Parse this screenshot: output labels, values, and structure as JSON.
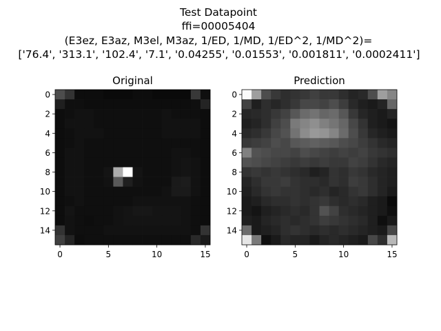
{
  "figure": {
    "title_lines": [
      "Test Datapoint",
      "ffi=00005404",
      "(E3ez, E3az, M3el, M3az, 1/ED, 1/MD, 1/ED^2, 1/MD^2)=",
      "['76.4', '313.1', '102.4', '7.1', '0.04255', '0.01553', '0.001811', '0.0002411']"
    ]
  },
  "chart_data": [
    {
      "type": "heatmap",
      "title": "Original",
      "colormap": "gray",
      "xlim": [
        0,
        15
      ],
      "ylim": [
        0,
        15
      ],
      "y_inverted": true,
      "xticks": [
        0,
        5,
        10,
        15
      ],
      "yticks": [
        0,
        2,
        4,
        6,
        8,
        10,
        12,
        14
      ],
      "values": [
        [
          0.3,
          0.2,
          0.05,
          0.05,
          0.05,
          0.04,
          0.04,
          0.04,
          0.05,
          0.05,
          0.04,
          0.04,
          0.04,
          0.04,
          0.22,
          0.06
        ],
        [
          0.12,
          0.06,
          0.06,
          0.05,
          0.05,
          0.05,
          0.05,
          0.05,
          0.05,
          0.05,
          0.05,
          0.05,
          0.05,
          0.05,
          0.06,
          0.14
        ],
        [
          0.05,
          0.06,
          0.07,
          0.07,
          0.06,
          0.06,
          0.06,
          0.06,
          0.06,
          0.06,
          0.06,
          0.07,
          0.06,
          0.06,
          0.06,
          0.05
        ],
        [
          0.05,
          0.07,
          0.07,
          0.07,
          0.06,
          0.06,
          0.06,
          0.06,
          0.06,
          0.06,
          0.06,
          0.07,
          0.07,
          0.07,
          0.07,
          0.05
        ],
        [
          0.05,
          0.06,
          0.07,
          0.07,
          0.07,
          0.06,
          0.06,
          0.06,
          0.06,
          0.06,
          0.06,
          0.07,
          0.07,
          0.07,
          0.07,
          0.05
        ],
        [
          0.05,
          0.06,
          0.07,
          0.06,
          0.06,
          0.06,
          0.06,
          0.06,
          0.06,
          0.06,
          0.06,
          0.06,
          0.06,
          0.06,
          0.06,
          0.05
        ],
        [
          0.05,
          0.07,
          0.07,
          0.06,
          0.06,
          0.06,
          0.06,
          0.06,
          0.06,
          0.06,
          0.06,
          0.06,
          0.07,
          0.07,
          0.06,
          0.05
        ],
        [
          0.05,
          0.07,
          0.07,
          0.06,
          0.06,
          0.06,
          0.06,
          0.06,
          0.06,
          0.06,
          0.06,
          0.06,
          0.07,
          0.08,
          0.07,
          0.05
        ],
        [
          0.05,
          0.07,
          0.07,
          0.06,
          0.06,
          0.08,
          0.68,
          1.0,
          0.08,
          0.06,
          0.06,
          0.06,
          0.07,
          0.08,
          0.07,
          0.05
        ],
        [
          0.05,
          0.07,
          0.07,
          0.06,
          0.06,
          0.07,
          0.35,
          0.12,
          0.07,
          0.06,
          0.06,
          0.06,
          0.1,
          0.11,
          0.07,
          0.05
        ],
        [
          0.05,
          0.07,
          0.07,
          0.06,
          0.06,
          0.06,
          0.06,
          0.06,
          0.06,
          0.06,
          0.06,
          0.07,
          0.1,
          0.1,
          0.07,
          0.05
        ],
        [
          0.05,
          0.06,
          0.07,
          0.06,
          0.06,
          0.06,
          0.06,
          0.06,
          0.07,
          0.07,
          0.07,
          0.07,
          0.07,
          0.07,
          0.06,
          0.05
        ],
        [
          0.05,
          0.08,
          0.06,
          0.06,
          0.06,
          0.06,
          0.07,
          0.08,
          0.09,
          0.09,
          0.08,
          0.08,
          0.08,
          0.07,
          0.06,
          0.05
        ],
        [
          0.05,
          0.07,
          0.06,
          0.05,
          0.06,
          0.06,
          0.07,
          0.08,
          0.08,
          0.08,
          0.08,
          0.08,
          0.08,
          0.07,
          0.06,
          0.05
        ],
        [
          0.2,
          0.07,
          0.06,
          0.06,
          0.06,
          0.07,
          0.07,
          0.07,
          0.07,
          0.07,
          0.07,
          0.07,
          0.07,
          0.07,
          0.06,
          0.2
        ],
        [
          0.25,
          0.14,
          0.05,
          0.06,
          0.06,
          0.06,
          0.06,
          0.06,
          0.06,
          0.06,
          0.06,
          0.06,
          0.06,
          0.06,
          0.16,
          0.1
        ]
      ]
    },
    {
      "type": "heatmap",
      "title": "Prediction",
      "colormap": "gray",
      "xlim": [
        0,
        15
      ],
      "ylim": [
        0,
        15
      ],
      "y_inverted": true,
      "xticks": [
        0,
        5,
        10,
        15
      ],
      "yticks": [
        0,
        2,
        4,
        6,
        8,
        10,
        12,
        14
      ],
      "values": [
        [
          0.98,
          0.62,
          0.3,
          0.22,
          0.18,
          0.2,
          0.22,
          0.25,
          0.22,
          0.22,
          0.18,
          0.14,
          0.16,
          0.3,
          0.62,
          0.52
        ],
        [
          0.26,
          0.12,
          0.18,
          0.15,
          0.18,
          0.22,
          0.28,
          0.28,
          0.26,
          0.3,
          0.24,
          0.16,
          0.12,
          0.1,
          0.14,
          0.4
        ],
        [
          0.15,
          0.16,
          0.18,
          0.22,
          0.26,
          0.34,
          0.42,
          0.45,
          0.4,
          0.42,
          0.34,
          0.22,
          0.15,
          0.12,
          0.1,
          0.14
        ],
        [
          0.12,
          0.14,
          0.18,
          0.25,
          0.3,
          0.48,
          0.52,
          0.56,
          0.5,
          0.46,
          0.4,
          0.28,
          0.2,
          0.12,
          0.1,
          0.08
        ],
        [
          0.16,
          0.18,
          0.22,
          0.28,
          0.32,
          0.45,
          0.55,
          0.6,
          0.58,
          0.52,
          0.42,
          0.3,
          0.22,
          0.15,
          0.12,
          0.1
        ],
        [
          0.22,
          0.24,
          0.26,
          0.3,
          0.28,
          0.34,
          0.36,
          0.38,
          0.36,
          0.34,
          0.3,
          0.28,
          0.24,
          0.2,
          0.16,
          0.14
        ],
        [
          0.5,
          0.32,
          0.3,
          0.28,
          0.28,
          0.26,
          0.3,
          0.28,
          0.26,
          0.24,
          0.26,
          0.24,
          0.26,
          0.22,
          0.2,
          0.18
        ],
        [
          0.32,
          0.3,
          0.28,
          0.26,
          0.24,
          0.22,
          0.24,
          0.22,
          0.24,
          0.22,
          0.22,
          0.26,
          0.24,
          0.2,
          0.16,
          0.14
        ],
        [
          0.2,
          0.22,
          0.2,
          0.22,
          0.2,
          0.18,
          0.16,
          0.12,
          0.14,
          0.2,
          0.18,
          0.22,
          0.2,
          0.16,
          0.14,
          0.12
        ],
        [
          0.14,
          0.18,
          0.22,
          0.22,
          0.24,
          0.2,
          0.18,
          0.18,
          0.16,
          0.2,
          0.18,
          0.24,
          0.22,
          0.18,
          0.14,
          0.12
        ],
        [
          0.12,
          0.16,
          0.2,
          0.22,
          0.2,
          0.2,
          0.18,
          0.16,
          0.18,
          0.14,
          0.16,
          0.2,
          0.22,
          0.18,
          0.14,
          0.1
        ],
        [
          0.1,
          0.12,
          0.16,
          0.18,
          0.18,
          0.2,
          0.18,
          0.2,
          0.22,
          0.18,
          0.16,
          0.18,
          0.16,
          0.12,
          0.1,
          0.04
        ],
        [
          0.1,
          0.08,
          0.12,
          0.14,
          0.16,
          0.18,
          0.16,
          0.2,
          0.32,
          0.26,
          0.18,
          0.16,
          0.14,
          0.12,
          0.1,
          0.06
        ],
        [
          0.12,
          0.1,
          0.14,
          0.16,
          0.18,
          0.16,
          0.18,
          0.2,
          0.24,
          0.22,
          0.2,
          0.18,
          0.16,
          0.12,
          0.06,
          0.1
        ],
        [
          0.42,
          0.1,
          0.12,
          0.14,
          0.18,
          0.2,
          0.18,
          0.16,
          0.18,
          0.16,
          0.18,
          0.16,
          0.14,
          0.12,
          0.1,
          0.28
        ],
        [
          0.9,
          0.48,
          0.06,
          0.1,
          0.16,
          0.14,
          0.14,
          0.1,
          0.14,
          0.16,
          0.14,
          0.12,
          0.1,
          0.28,
          0.18,
          0.72
        ]
      ]
    }
  ]
}
